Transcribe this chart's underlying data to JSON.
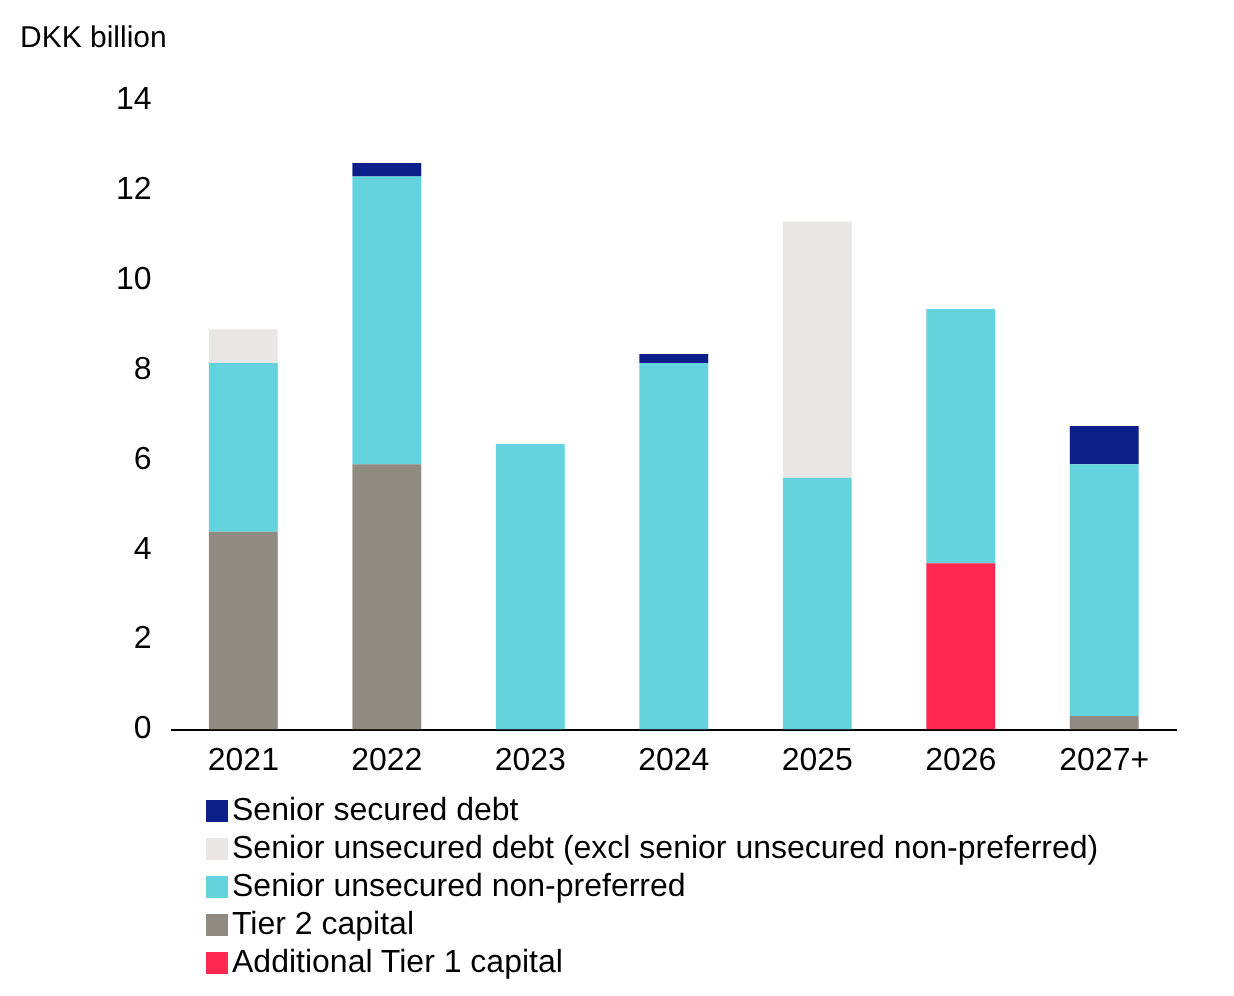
{
  "chart_data": {
    "type": "bar",
    "stacked": true,
    "ylabel": "DKK billion",
    "categories": [
      "2021",
      "2022",
      "2023",
      "2024",
      "2025",
      "2026",
      "2027+"
    ],
    "series": [
      {
        "name": "Additional Tier 1 capital",
        "color": "#ff2850",
        "values": [
          0,
          0,
          0,
          0,
          0,
          3.7,
          0
        ]
      },
      {
        "name": "Tier 2 capital",
        "color": "#918a80",
        "values": [
          4.4,
          5.9,
          0,
          0,
          0,
          0,
          0.3
        ]
      },
      {
        "name": "Senior unsecured non-preferred",
        "color": "#65d3dd",
        "values": [
          3.75,
          6.4,
          6.35,
          8.15,
          5.6,
          5.65,
          5.6
        ]
      },
      {
        "name": "Senior unsecured debt (excl senior unsecured non-preferred)",
        "color": "#ebe6e6",
        "values": [
          0.75,
          0,
          0,
          0,
          5.7,
          0,
          0
        ]
      },
      {
        "name": "Senior secured debt",
        "color": "#0d1f8a",
        "values": [
          0,
          0.3,
          0,
          0.2,
          0,
          0,
          0.85
        ]
      }
    ],
    "ylim": [
      0,
      14
    ],
    "yticks": [
      0,
      2,
      4,
      6,
      8,
      10,
      12,
      14
    ],
    "grid": false,
    "legend": "bottom left"
  }
}
